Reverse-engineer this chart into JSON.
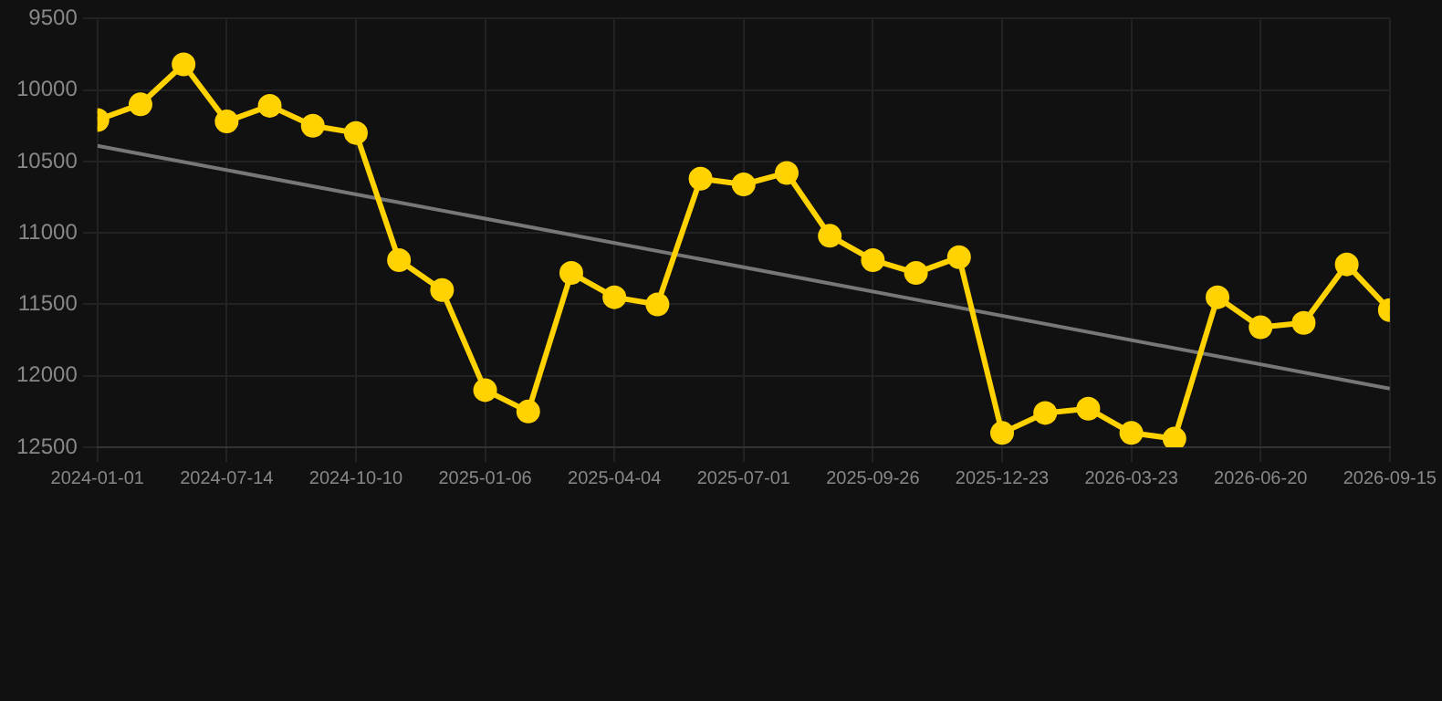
{
  "chart_data": {
    "type": "line",
    "categories": [
      "2024-01-01",
      null,
      null,
      "2024-07-14",
      null,
      null,
      "2024-10-10",
      null,
      null,
      "2025-01-06",
      null,
      null,
      "2025-04-04",
      null,
      null,
      "2025-07-01",
      null,
      null,
      "2025-09-26",
      null,
      null,
      "2025-12-23",
      null,
      null,
      "2026-03-23",
      null,
      null,
      "2026-06-20",
      null,
      null,
      "2026-09-15"
    ],
    "series": [
      {
        "color": "#ffd200",
        "marker": "circle",
        "values": [
          10210,
          10100,
          9820,
          10220,
          10110,
          10250,
          10300,
          11190,
          11400,
          12100,
          12250,
          11280,
          11450,
          11500,
          10620,
          10660,
          10580,
          11020,
          11190,
          11280,
          11170,
          12400,
          12260,
          12230,
          12400,
          12440,
          11450,
          11660,
          11630,
          11220,
          11540
        ]
      },
      {
        "type": "line",
        "color": "#777777",
        "marker": "none",
        "values": [
          10390,
          null,
          null,
          null,
          null,
          null,
          null,
          null,
          null,
          null,
          null,
          null,
          null,
          null,
          null,
          null,
          null,
          null,
          null,
          null,
          null,
          null,
          null,
          null,
          null,
          null,
          null,
          null,
          null,
          null,
          12090
        ]
      }
    ],
    "ylim": [
      12500,
      9500
    ],
    "yticks": [
      9500,
      10000,
      10500,
      11000,
      11500,
      12000,
      12500
    ],
    "grid": true,
    "legend": false
  }
}
